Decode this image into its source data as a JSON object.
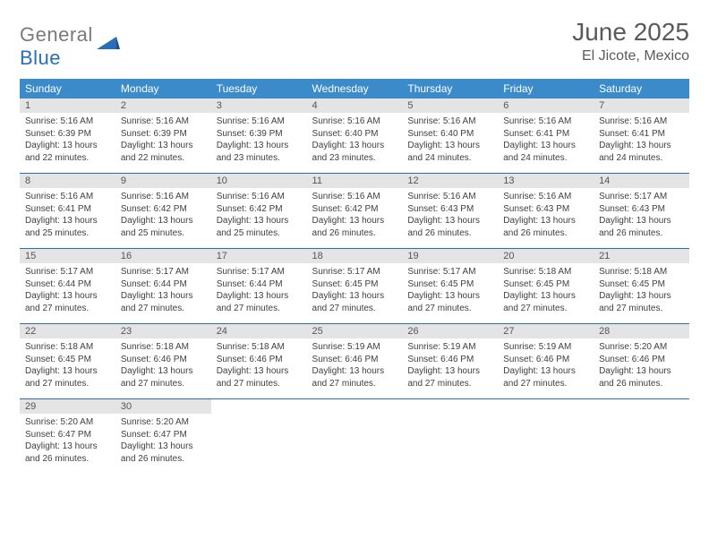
{
  "logo": {
    "gray": "General",
    "blue": "Blue"
  },
  "header": {
    "title": "June 2025",
    "location": "El Jicote, Mexico"
  },
  "colors": {
    "header_bg": "#3b8bca",
    "header_fg": "#ffffff",
    "date_bg": "#e4e4e4",
    "sep": "#2a6db8",
    "logo_gray": "#7a7a7a",
    "logo_blue": "#2a6db8"
  },
  "weekdays": [
    "Sunday",
    "Monday",
    "Tuesday",
    "Wednesday",
    "Thursday",
    "Friday",
    "Saturday"
  ],
  "weeks": [
    [
      {
        "date": "1",
        "sunrise": "Sunrise: 5:16 AM",
        "sunset": "Sunset: 6:39 PM",
        "day1": "Daylight: 13 hours",
        "day2": "and 22 minutes."
      },
      {
        "date": "2",
        "sunrise": "Sunrise: 5:16 AM",
        "sunset": "Sunset: 6:39 PM",
        "day1": "Daylight: 13 hours",
        "day2": "and 22 minutes."
      },
      {
        "date": "3",
        "sunrise": "Sunrise: 5:16 AM",
        "sunset": "Sunset: 6:39 PM",
        "day1": "Daylight: 13 hours",
        "day2": "and 23 minutes."
      },
      {
        "date": "4",
        "sunrise": "Sunrise: 5:16 AM",
        "sunset": "Sunset: 6:40 PM",
        "day1": "Daylight: 13 hours",
        "day2": "and 23 minutes."
      },
      {
        "date": "5",
        "sunrise": "Sunrise: 5:16 AM",
        "sunset": "Sunset: 6:40 PM",
        "day1": "Daylight: 13 hours",
        "day2": "and 24 minutes."
      },
      {
        "date": "6",
        "sunrise": "Sunrise: 5:16 AM",
        "sunset": "Sunset: 6:41 PM",
        "day1": "Daylight: 13 hours",
        "day2": "and 24 minutes."
      },
      {
        "date": "7",
        "sunrise": "Sunrise: 5:16 AM",
        "sunset": "Sunset: 6:41 PM",
        "day1": "Daylight: 13 hours",
        "day2": "and 24 minutes."
      }
    ],
    [
      {
        "date": "8",
        "sunrise": "Sunrise: 5:16 AM",
        "sunset": "Sunset: 6:41 PM",
        "day1": "Daylight: 13 hours",
        "day2": "and 25 minutes."
      },
      {
        "date": "9",
        "sunrise": "Sunrise: 5:16 AM",
        "sunset": "Sunset: 6:42 PM",
        "day1": "Daylight: 13 hours",
        "day2": "and 25 minutes."
      },
      {
        "date": "10",
        "sunrise": "Sunrise: 5:16 AM",
        "sunset": "Sunset: 6:42 PM",
        "day1": "Daylight: 13 hours",
        "day2": "and 25 minutes."
      },
      {
        "date": "11",
        "sunrise": "Sunrise: 5:16 AM",
        "sunset": "Sunset: 6:42 PM",
        "day1": "Daylight: 13 hours",
        "day2": "and 26 minutes."
      },
      {
        "date": "12",
        "sunrise": "Sunrise: 5:16 AM",
        "sunset": "Sunset: 6:43 PM",
        "day1": "Daylight: 13 hours",
        "day2": "and 26 minutes."
      },
      {
        "date": "13",
        "sunrise": "Sunrise: 5:16 AM",
        "sunset": "Sunset: 6:43 PM",
        "day1": "Daylight: 13 hours",
        "day2": "and 26 minutes."
      },
      {
        "date": "14",
        "sunrise": "Sunrise: 5:17 AM",
        "sunset": "Sunset: 6:43 PM",
        "day1": "Daylight: 13 hours",
        "day2": "and 26 minutes."
      }
    ],
    [
      {
        "date": "15",
        "sunrise": "Sunrise: 5:17 AM",
        "sunset": "Sunset: 6:44 PM",
        "day1": "Daylight: 13 hours",
        "day2": "and 27 minutes."
      },
      {
        "date": "16",
        "sunrise": "Sunrise: 5:17 AM",
        "sunset": "Sunset: 6:44 PM",
        "day1": "Daylight: 13 hours",
        "day2": "and 27 minutes."
      },
      {
        "date": "17",
        "sunrise": "Sunrise: 5:17 AM",
        "sunset": "Sunset: 6:44 PM",
        "day1": "Daylight: 13 hours",
        "day2": "and 27 minutes."
      },
      {
        "date": "18",
        "sunrise": "Sunrise: 5:17 AM",
        "sunset": "Sunset: 6:45 PM",
        "day1": "Daylight: 13 hours",
        "day2": "and 27 minutes."
      },
      {
        "date": "19",
        "sunrise": "Sunrise: 5:17 AM",
        "sunset": "Sunset: 6:45 PM",
        "day1": "Daylight: 13 hours",
        "day2": "and 27 minutes."
      },
      {
        "date": "20",
        "sunrise": "Sunrise: 5:18 AM",
        "sunset": "Sunset: 6:45 PM",
        "day1": "Daylight: 13 hours",
        "day2": "and 27 minutes."
      },
      {
        "date": "21",
        "sunrise": "Sunrise: 5:18 AM",
        "sunset": "Sunset: 6:45 PM",
        "day1": "Daylight: 13 hours",
        "day2": "and 27 minutes."
      }
    ],
    [
      {
        "date": "22",
        "sunrise": "Sunrise: 5:18 AM",
        "sunset": "Sunset: 6:45 PM",
        "day1": "Daylight: 13 hours",
        "day2": "and 27 minutes."
      },
      {
        "date": "23",
        "sunrise": "Sunrise: 5:18 AM",
        "sunset": "Sunset: 6:46 PM",
        "day1": "Daylight: 13 hours",
        "day2": "and 27 minutes."
      },
      {
        "date": "24",
        "sunrise": "Sunrise: 5:18 AM",
        "sunset": "Sunset: 6:46 PM",
        "day1": "Daylight: 13 hours",
        "day2": "and 27 minutes."
      },
      {
        "date": "25",
        "sunrise": "Sunrise: 5:19 AM",
        "sunset": "Sunset: 6:46 PM",
        "day1": "Daylight: 13 hours",
        "day2": "and 27 minutes."
      },
      {
        "date": "26",
        "sunrise": "Sunrise: 5:19 AM",
        "sunset": "Sunset: 6:46 PM",
        "day1": "Daylight: 13 hours",
        "day2": "and 27 minutes."
      },
      {
        "date": "27",
        "sunrise": "Sunrise: 5:19 AM",
        "sunset": "Sunset: 6:46 PM",
        "day1": "Daylight: 13 hours",
        "day2": "and 27 minutes."
      },
      {
        "date": "28",
        "sunrise": "Sunrise: 5:20 AM",
        "sunset": "Sunset: 6:46 PM",
        "day1": "Daylight: 13 hours",
        "day2": "and 26 minutes."
      }
    ],
    [
      {
        "date": "29",
        "sunrise": "Sunrise: 5:20 AM",
        "sunset": "Sunset: 6:47 PM",
        "day1": "Daylight: 13 hours",
        "day2": "and 26 minutes."
      },
      {
        "date": "30",
        "sunrise": "Sunrise: 5:20 AM",
        "sunset": "Sunset: 6:47 PM",
        "day1": "Daylight: 13 hours",
        "day2": "and 26 minutes."
      },
      null,
      null,
      null,
      null,
      null
    ]
  ]
}
